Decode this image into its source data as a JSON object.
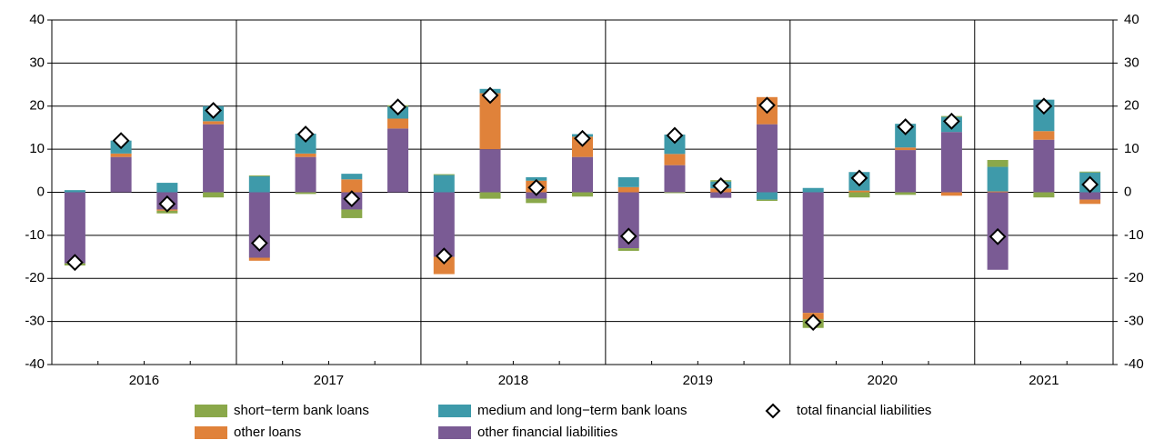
{
  "chart_data": {
    "type": "bar",
    "categories": [
      null,
      null,
      null,
      null,
      null,
      null,
      null,
      null,
      null,
      null,
      null,
      null,
      null,
      null,
      null,
      null,
      null,
      null,
      null,
      null,
      null,
      null,
      null
    ],
    "groups": [
      "2016",
      "2017",
      "2018",
      "2019",
      "2020",
      "2021"
    ],
    "group_sizes": [
      4,
      4,
      4,
      4,
      4,
      3
    ],
    "ylim": [
      -40,
      40
    ],
    "yticks": [
      -40,
      -30,
      -20,
      -10,
      0,
      10,
      20,
      30,
      40
    ],
    "grid": true,
    "stacked": true,
    "series": [
      {
        "name": "other financial liabilities",
        "color": "#7a5b94",
        "values": [
          -16.5,
          8.2,
          -4,
          15.8,
          -15.2,
          8.2,
          -4,
          14.8,
          -15,
          10,
          -1.5,
          8.2,
          -13,
          6.3,
          -1.3,
          15.8,
          -28,
          0,
          9.8,
          14,
          -18,
          12.2,
          -1.7
        ]
      },
      {
        "name": "other loans",
        "color": "#e0823a",
        "values": [
          0,
          0.8,
          -0.3,
          0.7,
          -0.7,
          0.8,
          3,
          2.3,
          -4,
          13,
          2.7,
          4.7,
          1.2,
          2.6,
          0.9,
          6.3,
          -1.5,
          0.4,
          0.6,
          -0.8,
          0.2,
          2,
          -1
        ]
      },
      {
        "name": "medium and long−term bank loans",
        "color": "#3e9aaa",
        "values": [
          0.5,
          3,
          2.2,
          3.5,
          3.7,
          4.6,
          1.3,
          2.8,
          4,
          1,
          0.8,
          0.6,
          2.3,
          4.5,
          1.6,
          -1.7,
          1,
          4.3,
          5.5,
          3.5,
          5.7,
          7.3,
          4.6
        ]
      },
      {
        "name": "short−term bank loans",
        "color": "#8aa84a",
        "values": [
          -0.5,
          0,
          -0.6,
          -1.2,
          0.2,
          -0.4,
          -2,
          0.3,
          0.2,
          -1.5,
          -1,
          -1,
          -0.6,
          -0.2,
          0.3,
          -0.3,
          -2,
          -1.2,
          -0.6,
          0.2,
          1.6,
          -1.2,
          0.2
        ]
      },
      {
        "name": "total financial liabilities",
        "type": "marker",
        "color": "#ffffff",
        "values": [
          -16.3,
          12,
          -2.7,
          19,
          -11.8,
          13.5,
          -1.5,
          19.8,
          -14.8,
          22.5,
          1.1,
          12.5,
          -10.2,
          13.2,
          1.5,
          20.2,
          -30.2,
          3.3,
          15.2,
          16.5,
          -10.3,
          20,
          1.8
        ]
      }
    ]
  }
}
